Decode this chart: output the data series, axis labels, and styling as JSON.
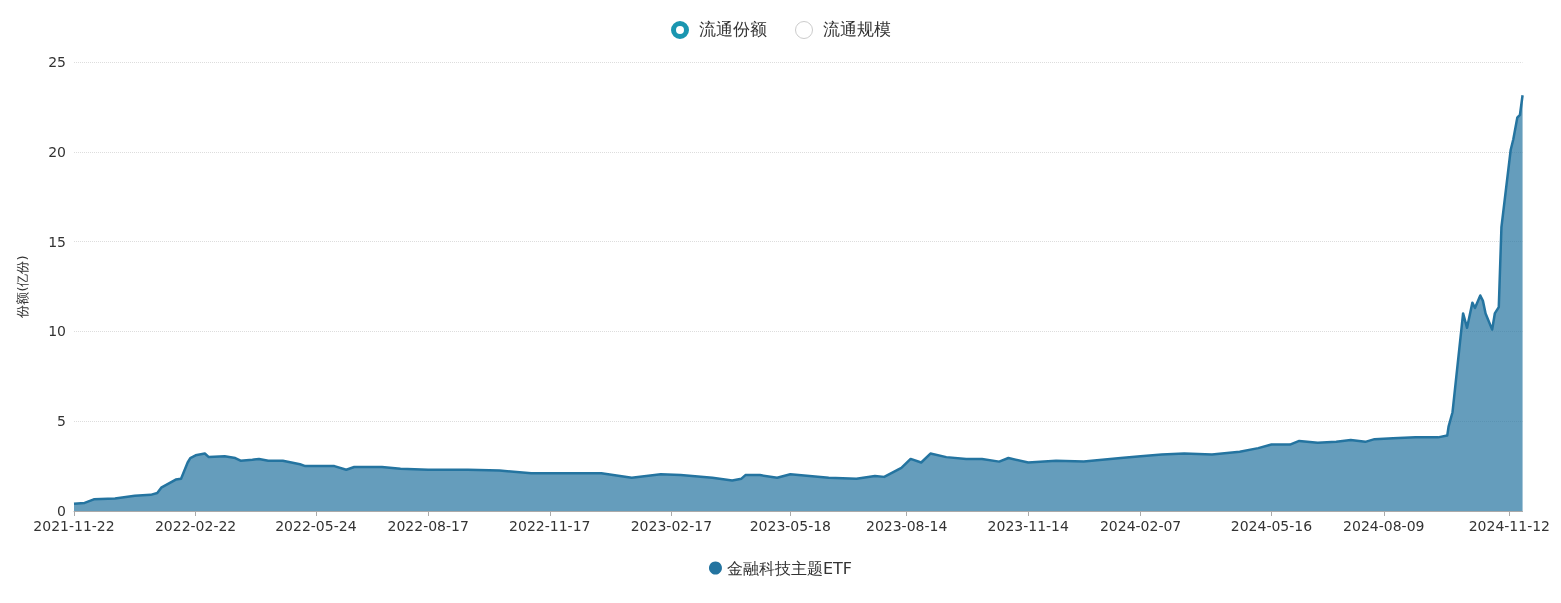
{
  "chart_data": {
    "type": "area",
    "ylabel": "份额(亿份)",
    "annotations": [
      "流通份额",
      "流通规模"
    ],
    "x": [
      "2021-11-22",
      "2021-11-30",
      "2021-12-07",
      "2021-12-23",
      "2022-01-07",
      "2022-01-19",
      "2022-01-24",
      "2022-01-27",
      "2022-02-07",
      "2022-02-11",
      "2022-02-16",
      "2022-02-18",
      "2022-02-22",
      "2022-03-01",
      "2022-03-04",
      "2022-03-16",
      "2022-03-24",
      "2022-03-28",
      "2022-04-06",
      "2022-04-11",
      "2022-04-18",
      "2022-04-29",
      "2022-05-12",
      "2022-05-16",
      "2022-06-07",
      "2022-06-16",
      "2022-06-22",
      "2022-07-13",
      "2022-07-27",
      "2022-08-17",
      "2022-09-16",
      "2022-10-10",
      "2022-11-03",
      "2022-11-17",
      "2022-12-26",
      "2023-01-18",
      "2023-02-09",
      "2023-02-24",
      "2023-03-20",
      "2023-04-04",
      "2023-04-11",
      "2023-04-14",
      "2023-04-25",
      "2023-05-08",
      "2023-05-18",
      "2023-06-16",
      "2023-07-07",
      "2023-07-21",
      "2023-07-28",
      "2023-08-10",
      "2023-08-17",
      "2023-08-25",
      "2023-09-01",
      "2023-09-13",
      "2023-09-28",
      "2023-10-10",
      "2023-10-23",
      "2023-10-30",
      "2023-11-14",
      "2023-12-05",
      "2023-12-26",
      "2024-01-09",
      "2024-01-23",
      "2024-02-07",
      "2024-02-23",
      "2024-03-11",
      "2024-04-01",
      "2024-04-22",
      "2024-05-06",
      "2024-05-16",
      "2024-05-30",
      "2024-06-06",
      "2024-06-20",
      "2024-07-04",
      "2024-07-15",
      "2024-07-26",
      "2024-08-02",
      "2024-08-16",
      "2024-09-02",
      "2024-09-19",
      "2024-09-26",
      "2024-09-27",
      "2024-09-30",
      "2024-10-08",
      "2024-10-11",
      "2024-10-15",
      "2024-10-17",
      "2024-10-21",
      "2024-10-23",
      "2024-10-25",
      "2024-10-30",
      "2024-11-01",
      "2024-11-04",
      "2024-11-06",
      "2024-11-13",
      "2024-11-15",
      "2024-11-18",
      "2024-11-20",
      "2024-11-22"
    ],
    "series": [
      {
        "name": "金融科技主题ETF",
        "color": "#2474a0",
        "values": [
          0.4,
          0.45,
          0.65,
          0.7,
          0.85,
          0.9,
          1.0,
          1.3,
          1.75,
          1.8,
          2.7,
          2.95,
          3.1,
          3.2,
          3.0,
          3.05,
          2.95,
          2.8,
          2.85,
          2.9,
          2.8,
          2.8,
          2.6,
          2.5,
          2.5,
          2.3,
          2.45,
          2.45,
          2.35,
          2.3,
          2.3,
          2.25,
          2.1,
          2.1,
          2.1,
          1.85,
          2.05,
          2.0,
          1.85,
          1.7,
          1.8,
          2.0,
          2.0,
          1.85,
          2.05,
          1.85,
          1.8,
          1.95,
          1.9,
          2.4,
          2.9,
          2.7,
          3.2,
          3.0,
          2.9,
          2.9,
          2.75,
          2.95,
          2.7,
          2.8,
          2.75,
          2.85,
          2.95,
          3.05,
          3.15,
          3.2,
          3.15,
          3.3,
          3.5,
          3.7,
          3.7,
          3.9,
          3.8,
          3.85,
          3.95,
          3.85,
          4.0,
          4.05,
          4.1,
          4.1,
          4.2,
          4.7,
          5.5,
          11.0,
          10.2,
          11.6,
          11.3,
          12.0,
          11.7,
          11.0,
          10.1,
          11.0,
          11.35,
          15.8,
          20.1,
          20.7,
          21.9,
          22.05,
          23.15
        ]
      }
    ],
    "xlim": [
      "2021-11-22",
      "2024-11-22"
    ],
    "xticks": [
      "2021-11-22",
      "2022-02-22",
      "2022-05-24",
      "2022-08-17",
      "2022-11-17",
      "2023-02-17",
      "2023-05-18",
      "2023-08-14",
      "2023-11-14",
      "2024-02-07",
      "2024-05-16",
      "2024-08-09",
      "2024-11-12"
    ],
    "ylim": [
      0,
      25
    ],
    "yticks": [
      0,
      5,
      10,
      15,
      20,
      25
    ],
    "grid": "y",
    "legend": "bottom",
    "marker": "none"
  }
}
